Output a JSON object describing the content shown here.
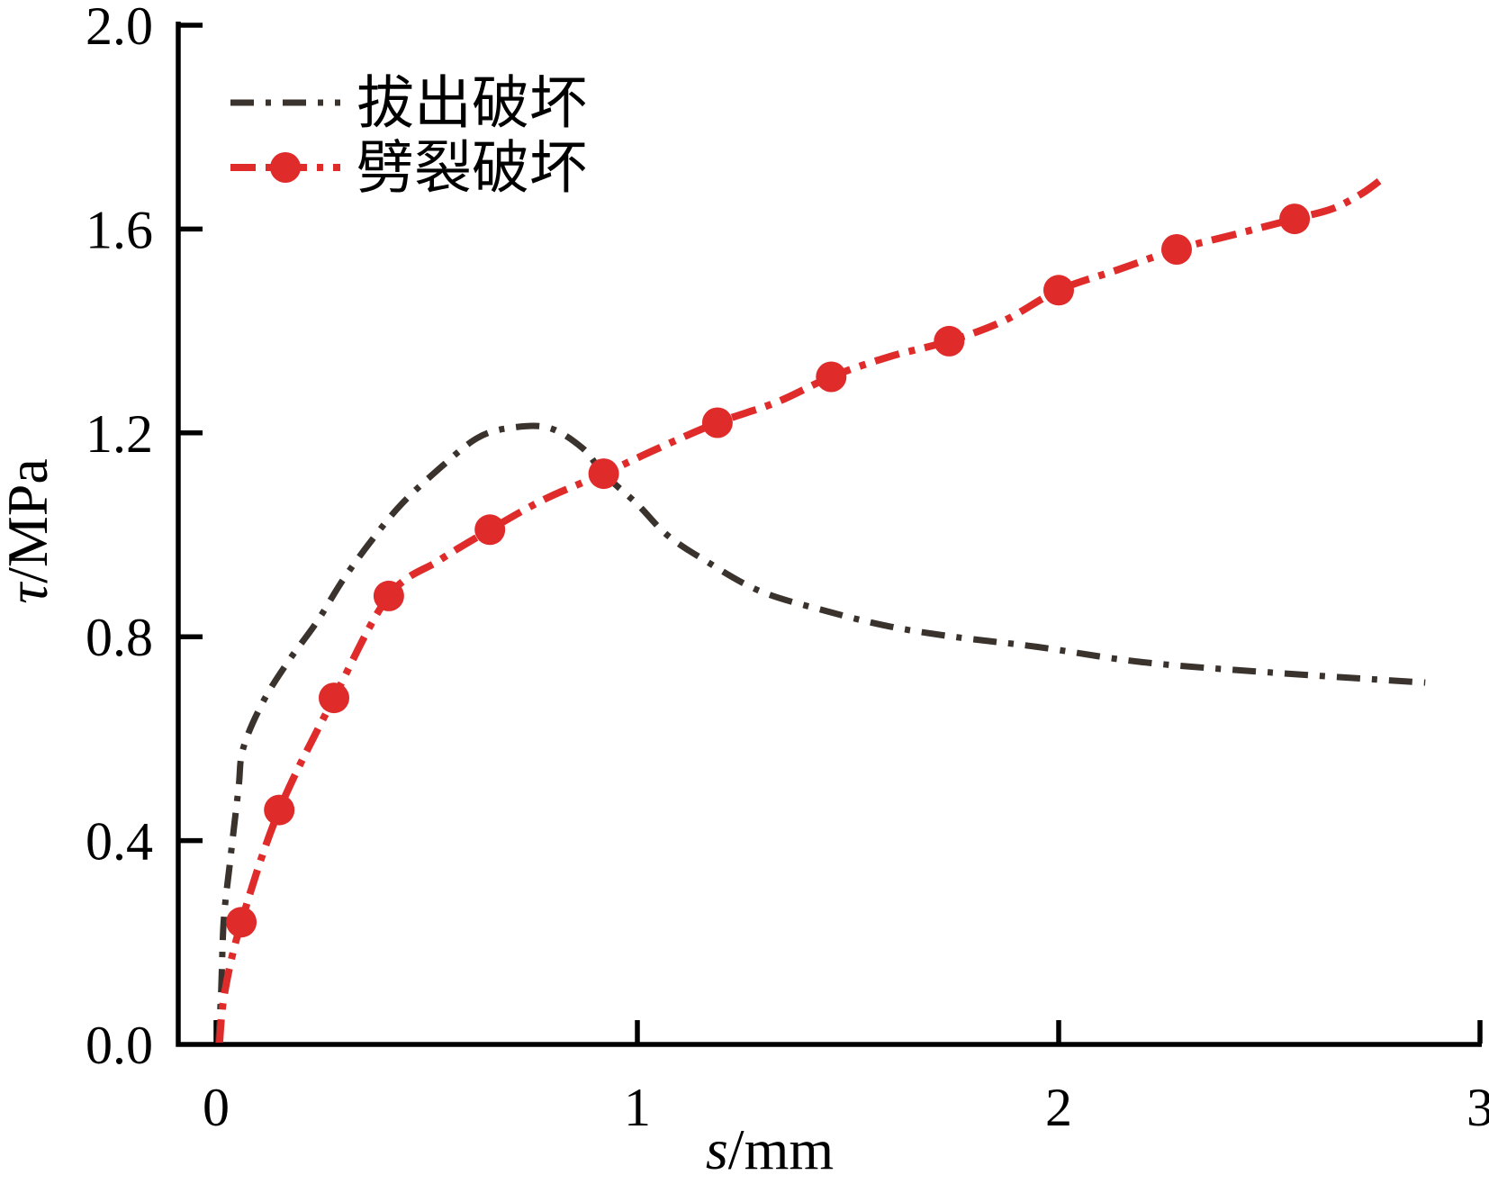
{
  "chart_data": {
    "type": "line",
    "title": "",
    "xlabel": "s/mm",
    "ylabel": "τ/MPa",
    "xlabel_parts": {
      "var": "s",
      "rest": "/mm"
    },
    "ylabel_parts": {
      "var": "τ",
      "rest": "/MPa"
    },
    "xlim": [
      0,
      3
    ],
    "ylim": [
      0.0,
      2.0
    ],
    "xticks": {
      "values": [
        0,
        1,
        2,
        3
      ],
      "labels": [
        "0",
        "1",
        "2",
        "3"
      ]
    },
    "yticks": {
      "values": [
        0.0,
        0.4,
        0.8,
        1.2,
        1.6,
        2.0
      ],
      "labels": [
        "0.0",
        "0.4",
        "0.8",
        "1.2",
        "1.6",
        "2.0"
      ]
    },
    "grid": false,
    "legend_position": "top-left-inside",
    "axis_color": "#000000",
    "series": [
      {
        "name": "拔出破坏",
        "color": "#3a322d",
        "line_style": "dash-dot",
        "marker": "none",
        "points": [
          [
            0.005,
            0.0
          ],
          [
            0.012,
            0.1
          ],
          [
            0.018,
            0.24
          ],
          [
            0.032,
            0.35
          ],
          [
            0.053,
            0.5
          ],
          [
            0.064,
            0.58
          ],
          [
            0.11,
            0.67
          ],
          [
            0.17,
            0.75
          ],
          [
            0.24,
            0.83
          ],
          [
            0.3,
            0.91
          ],
          [
            0.37,
            0.99
          ],
          [
            0.44,
            1.06
          ],
          [
            0.53,
            1.13
          ],
          [
            0.62,
            1.19
          ],
          [
            0.7,
            1.21
          ],
          [
            0.79,
            1.21
          ],
          [
            0.87,
            1.17
          ],
          [
            0.92,
            1.12
          ],
          [
            1.0,
            1.06
          ],
          [
            1.07,
            1.0
          ],
          [
            1.16,
            0.95
          ],
          [
            1.29,
            0.89
          ],
          [
            1.45,
            0.85
          ],
          [
            1.6,
            0.82
          ],
          [
            1.75,
            0.8
          ],
          [
            1.95,
            0.78
          ],
          [
            2.2,
            0.75
          ],
          [
            2.5,
            0.73
          ],
          [
            2.87,
            0.71
          ]
        ]
      },
      {
        "name": "劈裂破坏",
        "color": "#e02b2b",
        "line_style": "dash-dot",
        "marker": "filled-circle",
        "points": [
          [
            0.008,
            0.0
          ],
          [
            0.02,
            0.1
          ],
          [
            0.06,
            0.24
          ],
          [
            0.15,
            0.46
          ],
          [
            0.28,
            0.68
          ],
          [
            0.41,
            0.88
          ],
          [
            0.53,
            0.95
          ],
          [
            0.65,
            1.01
          ],
          [
            0.78,
            1.07
          ],
          [
            0.92,
            1.12
          ],
          [
            1.05,
            1.17
          ],
          [
            1.19,
            1.22
          ],
          [
            1.33,
            1.26
          ],
          [
            1.46,
            1.31
          ],
          [
            1.6,
            1.35
          ],
          [
            1.74,
            1.38
          ],
          [
            1.87,
            1.42
          ],
          [
            2.0,
            1.48
          ],
          [
            2.14,
            1.52
          ],
          [
            2.28,
            1.56
          ],
          [
            2.42,
            1.59
          ],
          [
            2.56,
            1.62
          ],
          [
            2.65,
            1.64
          ],
          [
            2.72,
            1.67
          ],
          [
            2.77,
            1.7
          ]
        ],
        "marker_points": [
          [
            0.06,
            0.24
          ],
          [
            0.15,
            0.46
          ],
          [
            0.28,
            0.68
          ],
          [
            0.41,
            0.88
          ],
          [
            0.65,
            1.01
          ],
          [
            0.92,
            1.12
          ],
          [
            1.19,
            1.22
          ],
          [
            1.46,
            1.31
          ],
          [
            1.74,
            1.38
          ],
          [
            2.0,
            1.48
          ],
          [
            2.28,
            1.56
          ],
          [
            2.56,
            1.62
          ]
        ]
      }
    ]
  }
}
